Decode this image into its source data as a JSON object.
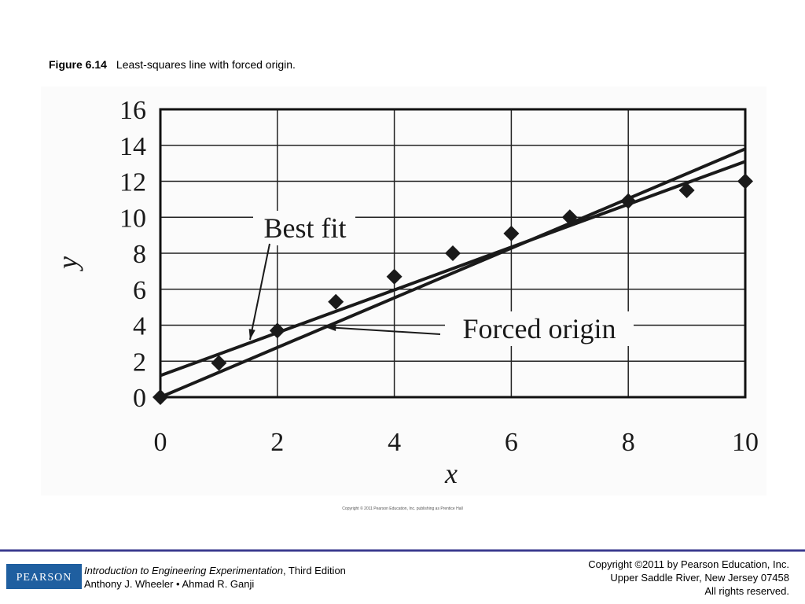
{
  "figure_label": "Figure 6.14",
  "caption": "Least-squares line with forced origin.",
  "image_credit": "Copyright © 2011 Pearson Education, Inc. publishing as Prentice Hall",
  "footer": {
    "logo": "PEARSON",
    "book_title": "Introduction to Engineering Experimentation",
    "edition": ", Third Edition",
    "authors": "Anthony J. Wheeler • Ahmad R. Ganji",
    "copyright": [
      "Copyright ©2011 by Pearson Education, Inc.",
      "Upper Saddle River, New Jersey 07458",
      "All rights reserved."
    ]
  },
  "chart_data": {
    "type": "scatter",
    "x_label": "x",
    "y_label": "y",
    "xlim": [
      0,
      10
    ],
    "ylim": [
      0,
      16
    ],
    "xticks": [
      0,
      2,
      4,
      6,
      8,
      10
    ],
    "yticks": [
      0,
      2,
      4,
      6,
      8,
      10,
      12,
      14,
      16
    ],
    "grid": true,
    "color": "#1a1a1a",
    "x": [
      0,
      1,
      2,
      3,
      4,
      5,
      6,
      7,
      8,
      9,
      10
    ],
    "values": [
      0,
      1.9,
      3.7,
      5.3,
      6.7,
      8,
      9.1,
      10,
      10.9,
      11.5,
      12
    ],
    "lines": [
      {
        "label": "Best fit",
        "x": [
          0,
          10
        ],
        "values": [
          1.2,
          13.1
        ]
      },
      {
        "label": "Forced origin",
        "x": [
          0,
          10
        ],
        "values": [
          0,
          13.8
        ]
      }
    ]
  }
}
